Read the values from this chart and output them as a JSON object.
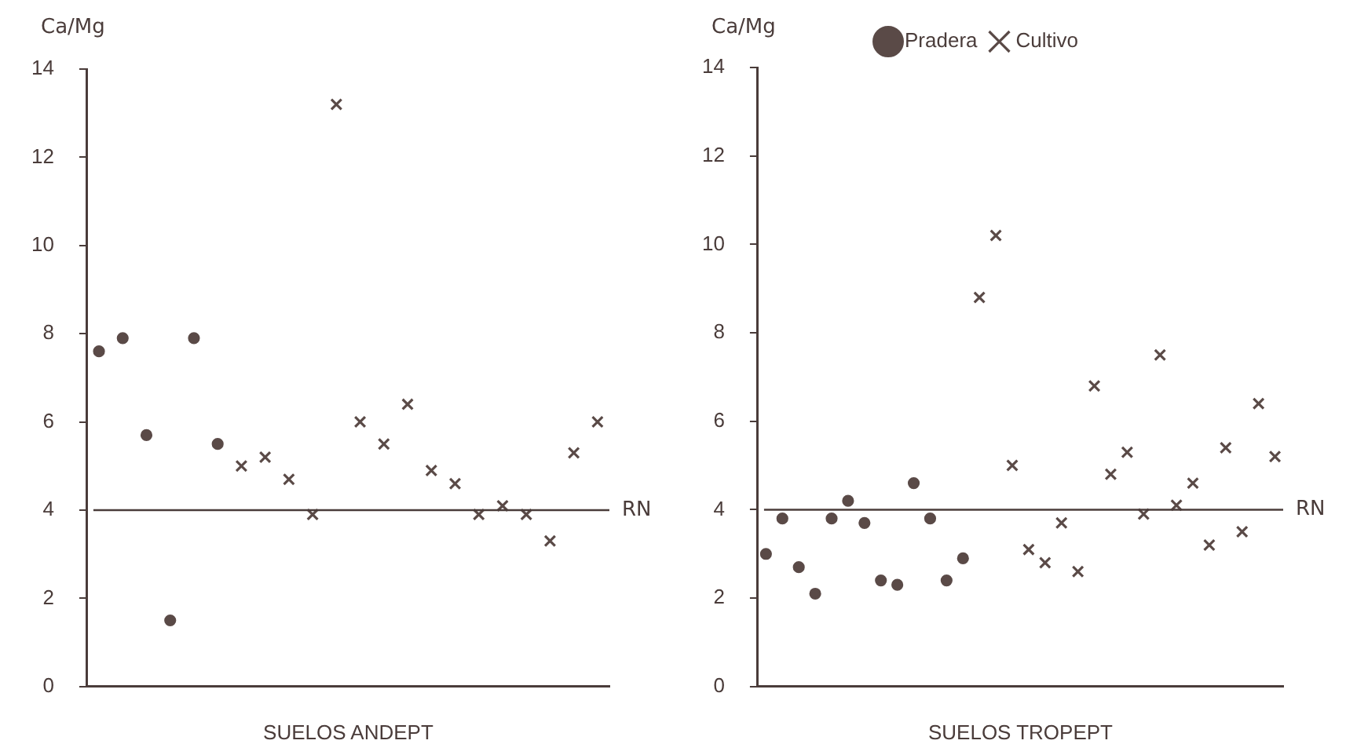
{
  "chart_data": [
    {
      "type": "scatter",
      "xlabel": "SUELOS ANDEPT",
      "ylabel": "Ca/Mg",
      "categories": [
        null,
        null,
        null,
        null,
        null,
        null,
        null,
        null,
        null,
        null,
        null,
        null,
        null,
        null,
        null,
        null,
        null,
        null,
        null,
        null,
        null,
        null
      ],
      "ylim": [
        0,
        14
      ],
      "yticks": [
        0,
        2,
        4,
        6,
        8,
        10,
        12,
        14
      ],
      "grid": false,
      "legend": false,
      "tick_labels": "y",
      "ref_lines": [
        {
          "axis": "y",
          "value": 4,
          "label": "RN"
        }
      ],
      "series": [
        {
          "color": "#5a4a47",
          "marker": "circle",
          "values": [
            7.6,
            7.9,
            5.7,
            1.5,
            7.9,
            5.5,
            null,
            null,
            null,
            null,
            null,
            null,
            null,
            null,
            null,
            null,
            null,
            null,
            null,
            null,
            null,
            null
          ]
        },
        {
          "color": "#5a4a47",
          "marker": "cross",
          "values": [
            null,
            null,
            null,
            null,
            null,
            null,
            5.0,
            5.2,
            4.7,
            3.9,
            13.2,
            6.0,
            5.5,
            6.4,
            4.9,
            4.6,
            3.9,
            4.1,
            3.9,
            3.3,
            5.3,
            6.0
          ]
        }
      ]
    },
    {
      "type": "scatter",
      "xlabel": "SUELOS TROPEPT",
      "ylabel": "Ca/Mg",
      "categories": [
        null,
        null,
        null,
        null,
        null,
        null,
        null,
        null,
        null,
        null,
        null,
        null,
        null,
        null,
        null,
        null,
        null,
        null,
        null,
        null,
        null,
        null,
        null,
        null,
        null,
        null,
        null,
        null,
        null,
        null,
        null,
        null
      ],
      "ylim": [
        0,
        14
      ],
      "yticks": [
        0,
        2,
        4,
        6,
        8,
        10,
        12,
        14
      ],
      "grid": false,
      "legend": "top",
      "tick_labels": "y",
      "ref_lines": [
        {
          "axis": "y",
          "value": 4,
          "label": "RN"
        }
      ],
      "series": [
        {
          "name": "Pradera",
          "color": "#5a4a47",
          "marker": "circle",
          "values": [
            3.0,
            3.8,
            2.7,
            2.1,
            3.8,
            4.2,
            3.7,
            2.4,
            2.3,
            4.6,
            3.8,
            2.4,
            2.9,
            null,
            null,
            null,
            null,
            null,
            null,
            null,
            null,
            null,
            null,
            null,
            null,
            null,
            null,
            null,
            null,
            null,
            null,
            null
          ]
        },
        {
          "name": "Cultivo",
          "color": "#5a4a47",
          "marker": "cross",
          "values": [
            null,
            null,
            null,
            null,
            null,
            null,
            null,
            null,
            null,
            null,
            null,
            null,
            null,
            8.8,
            10.2,
            5.0,
            3.1,
            2.8,
            3.7,
            2.6,
            6.8,
            4.8,
            5.3,
            3.9,
            7.5,
            4.1,
            4.6,
            3.2,
            5.4,
            3.5,
            6.4,
            5.2
          ]
        }
      ]
    }
  ]
}
